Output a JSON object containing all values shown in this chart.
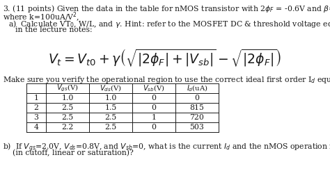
{
  "row_labels": [
    "1",
    "2",
    "3",
    "4"
  ],
  "table_data": [
    [
      "1.0",
      "1.0",
      "0",
      "0"
    ],
    [
      "2.5",
      "1.5",
      "0",
      "815"
    ],
    [
      "2.5",
      "2.5",
      "1",
      "720"
    ],
    [
      "2.2",
      "2.5",
      "0",
      "503"
    ]
  ],
  "bg_color": "#ffffff",
  "text_color": "#1a1a1a",
  "fontsize": 7.8,
  "eq_fontsize": 13.5,
  "table_fontsize": 7.8
}
